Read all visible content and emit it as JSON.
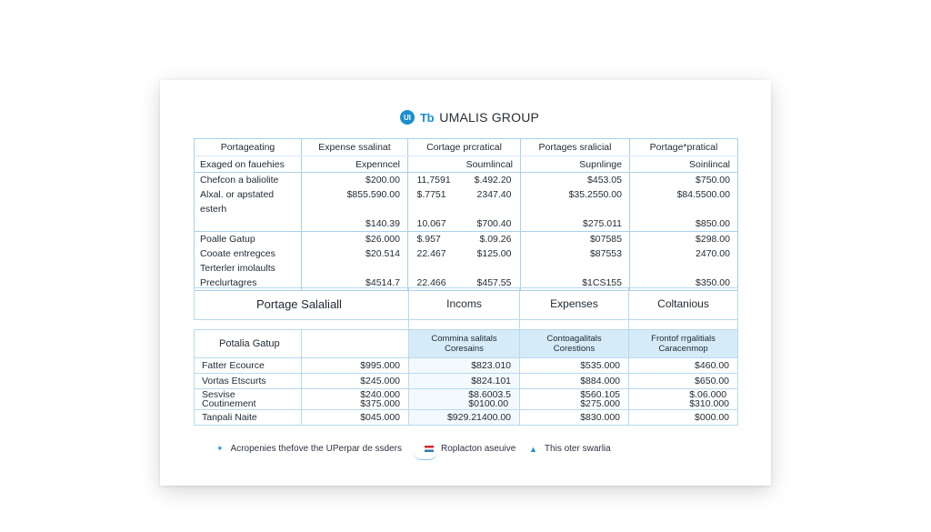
{
  "brand": {
    "logo_mark": "UI",
    "logo_letters": "Tb",
    "name": "UMALIS GROUP",
    "accent": "#1b8fd0"
  },
  "table1": {
    "headers": [
      "Portageating",
      "Expense ssalinat",
      "Cortage prcratical",
      "Portages sralicial",
      "Portage*pratical"
    ],
    "subheaders": [
      "Exaged on fauehies",
      "Expenncel",
      "Soumlincal",
      "Supnlinge",
      "Soinlincal"
    ],
    "groups": [
      {
        "rows": [
          {
            "label": "Chefcon a baliolite",
            "c2": "$200.00",
            "c3a": "11,7591",
            "c3b": "$.492.20",
            "c4": "$453.05",
            "c5": "$750.00"
          },
          {
            "label": "Alxal. or apstated",
            "c2": "$855.590.00",
            "c3a": "$.7751",
            "c3b": "2347.40",
            "c4": "$35.2550.00",
            "c5": "$84.5500.00"
          },
          {
            "label": "esterh",
            "c2": "",
            "c3a": "",
            "c3b": "",
            "c4": "",
            "c5": ""
          },
          {
            "label": "",
            "c2": "$140.39",
            "c3a": "10.067",
            "c3b": "$700.40",
            "c4": "$275.011",
            "c5": "$850.00"
          }
        ]
      },
      {
        "rows": [
          {
            "label": "Poalle Gatup",
            "c2": "$26.000",
            "c3a": "$.957",
            "c3b": "$.09.26",
            "c4": "$07585",
            "c5": "$298.00"
          },
          {
            "label": "Cooate entregces",
            "c2": "$20.514",
            "c3a": "22.467",
            "c3b": "$125.00",
            "c4": "$87553",
            "c5": "2470.00"
          },
          {
            "label": "Terterler imolaults",
            "c2": "",
            "c3a": "",
            "c3b": "",
            "c4": "",
            "c5": ""
          },
          {
            "label": "Preclurtagres",
            "c2": "$4514.7",
            "c3a": "22.466",
            "c3b": "$457.55",
            "c4": "$1CS155",
            "c5": "$350.00"
          }
        ]
      }
    ]
  },
  "table2": {
    "title": "Portage Salaliall",
    "columns": [
      "Incoms",
      "Expenses",
      "Coltanious"
    ],
    "group_label": "Potalia Gatup",
    "subheaders": [
      "Commina salitals Coresains",
      "Contoagalitals Corestions",
      "Frontof rrgalitials Caracenmop"
    ],
    "rows": [
      {
        "label": "Fatter Ecource",
        "v1": "$995.000",
        "v2": "$823.010",
        "v3": "$535.000",
        "v4": "$460.00"
      },
      {
        "label": "Vortas Etscurts",
        "v1": "$245.000",
        "v2": "$824.101",
        "v3": "$884.000",
        "v4": "$650.00"
      },
      {
        "label": "Sesvise",
        "label2": "Coutinement",
        "v1": "$240.000",
        "v1b": "$375.000",
        "v2": "$8.6003.5",
        "v2b": "$0100.00",
        "v3": "$560.105",
        "v3b": "$275.000",
        "v4": "$.06.000",
        "v4b": "$310.000"
      },
      {
        "label": "Tanpali Naite",
        "v1": "$045.000",
        "v2": "$929.21400.00",
        "v3": "$830.000",
        "v4": "$000.00"
      }
    ]
  },
  "footer": {
    "items": [
      {
        "icon": "twitter-bird-icon",
        "text": "Acropenies thefove the UPerpar de ssders"
      },
      {
        "icon": "flag-icon",
        "text": "Roplacton aseuive"
      },
      {
        "icon": "triangle-icon",
        "text": "This oter swarlia"
      }
    ]
  }
}
